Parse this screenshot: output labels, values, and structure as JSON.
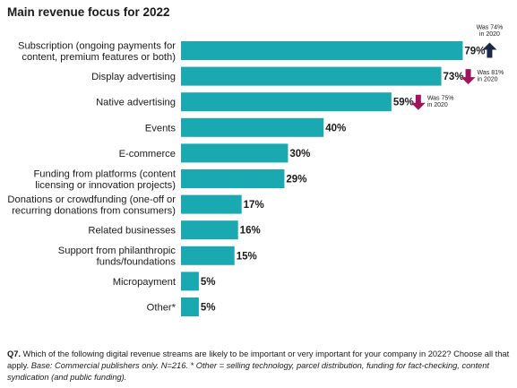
{
  "chart_data": {
    "type": "bar",
    "orientation": "horizontal",
    "title": "Main revenue focus for 2022",
    "categories": [
      [
        "Subscription (ongoing  payments for",
        "content, premium features or both)"
      ],
      [
        "Display advertising"
      ],
      [
        "Native advertising"
      ],
      [
        "Events"
      ],
      [
        "E-commerce"
      ],
      [
        "Funding from platforms (content",
        "licensing or innovation projects)"
      ],
      [
        "Donations or crowdfunding (one-off or",
        "recurring donations from consumers)"
      ],
      [
        "Related businesses"
      ],
      [
        "Support from philanthropic",
        "funds/foundations"
      ],
      [
        "Micropayment"
      ],
      [
        "Other*"
      ]
    ],
    "values": [
      79,
      73,
      59,
      40,
      30,
      29,
      17,
      16,
      15,
      5,
      5
    ],
    "value_labels": [
      "79%",
      "73%",
      "59%",
      "40%",
      "30%",
      "29%",
      "17%",
      "16%",
      "15%",
      "5%",
      "5%"
    ],
    "bar_color": "#1aa9b0",
    "annotations": [
      {
        "index": 0,
        "direction": "up",
        "color": "#1b2a4a",
        "lines": [
          "Was 74%",
          "in 2020"
        ]
      },
      {
        "index": 1,
        "direction": "down",
        "color": "#a0155a",
        "lines": [
          "Was 81%",
          "in 2020"
        ]
      },
      {
        "index": 2,
        "direction": "down",
        "color": "#a0155a",
        "lines": [
          "Was 75%",
          "in 2020"
        ]
      }
    ]
  },
  "footnote": {
    "q_label": "Q7.",
    "question": " Which of the following digital revenue streams are likely to be important or very important for your company in 2022? Choose all that apply. ",
    "base": "Base: Commercial publishers only. N=216. * Other = selling technology, parcel distribution, funding for fact-checking, content syndication (and public funding)."
  }
}
